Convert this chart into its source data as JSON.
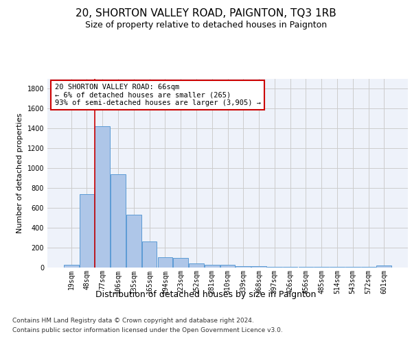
{
  "title": "20, SHORTON VALLEY ROAD, PAIGNTON, TQ3 1RB",
  "subtitle": "Size of property relative to detached houses in Paignton",
  "xlabel": "Distribution of detached houses by size in Paignton",
  "ylabel": "Number of detached properties",
  "footnote1": "Contains HM Land Registry data © Crown copyright and database right 2024.",
  "footnote2": "Contains public sector information licensed under the Open Government Licence v3.0.",
  "bin_labels": [
    "19sqm",
    "48sqm",
    "77sqm",
    "106sqm",
    "135sqm",
    "165sqm",
    "194sqm",
    "223sqm",
    "252sqm",
    "281sqm",
    "310sqm",
    "339sqm",
    "368sqm",
    "397sqm",
    "426sqm",
    "456sqm",
    "485sqm",
    "514sqm",
    "543sqm",
    "572sqm",
    "601sqm"
  ],
  "bar_values": [
    25,
    740,
    1420,
    940,
    530,
    265,
    105,
    95,
    40,
    30,
    25,
    15,
    15,
    5,
    5,
    5,
    5,
    5,
    5,
    5,
    20
  ],
  "bar_color": "#aec6e8",
  "bar_edge_color": "#5b9bd5",
  "grid_color": "#cccccc",
  "background_color": "#ffffff",
  "plot_bg_color": "#eef2fa",
  "red_line_color": "#cc0000",
  "annotation_text": "20 SHORTON VALLEY ROAD: 66sqm\n← 6% of detached houses are smaller (265)\n93% of semi-detached houses are larger (3,905) →",
  "annotation_box_color": "#cc0000",
  "ylim": [
    0,
    1900
  ],
  "yticks": [
    0,
    200,
    400,
    600,
    800,
    1000,
    1200,
    1400,
    1600,
    1800
  ],
  "title_fontsize": 11,
  "subtitle_fontsize": 9,
  "axis_fontsize": 8,
  "tick_fontsize": 7,
  "annot_fontsize": 7.5,
  "xlabel_fontsize": 9,
  "ylabel_fontsize": 8,
  "footnote_fontsize": 6.5
}
